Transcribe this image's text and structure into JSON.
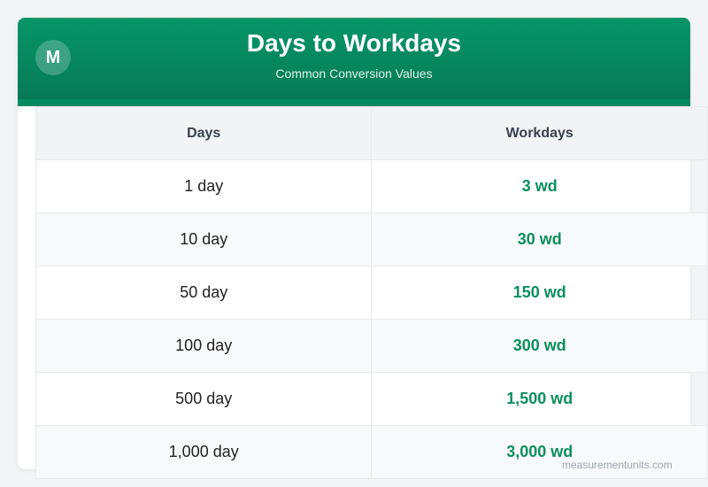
{
  "header": {
    "logo": "M",
    "title": "Days to Workdays",
    "subtitle": "Common Conversion Values"
  },
  "table": {
    "columns": [
      "Days",
      "Workdays"
    ],
    "rows": [
      [
        "1 day",
        "3 wd"
      ],
      [
        "10 day",
        "30 wd"
      ],
      [
        "50 day",
        "150 wd"
      ],
      [
        "100 day",
        "300 wd"
      ],
      [
        "500 day",
        "1,500 wd"
      ],
      [
        "1,000 day",
        "3,000 wd"
      ]
    ]
  },
  "watermark": "measurementunits.com",
  "colors": {
    "accent": "#079669",
    "value": "#0b8f5d",
    "background": "#f3f4f6"
  }
}
